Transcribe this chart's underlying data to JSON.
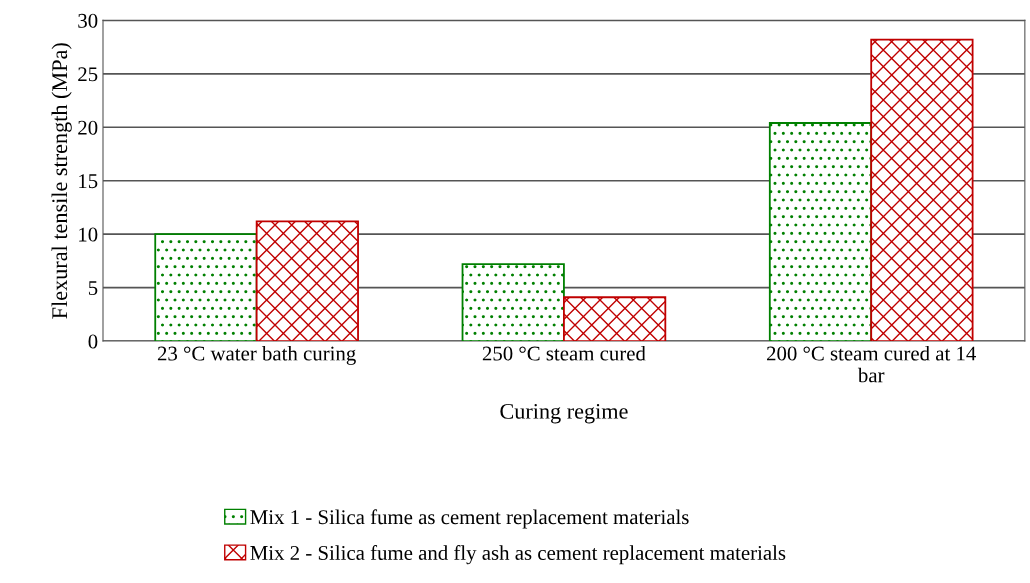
{
  "chart_data": {
    "type": "bar",
    "xlabel": "Curing regime",
    "ylabel": "Flexural tensile strength (MPa)",
    "categories": [
      "23 °C water bath curing",
      "250 °C steam cured",
      "200 °C steam cured at 14\nbar"
    ],
    "series": [
      {
        "name": "Mix 1 - Silica fume as cement replacement materials",
        "color": "#008000",
        "values": [
          10.0,
          7.2,
          20.4
        ]
      },
      {
        "name": "Mix 2 - Silica fume and fly ash as cement replacement materials",
        "color": "#c00000",
        "values": [
          11.2,
          4.1,
          28.2
        ]
      }
    ],
    "ylim": [
      0,
      30
    ],
    "yticks": [
      0,
      5,
      10,
      15,
      20,
      25,
      30
    ],
    "grid": "y",
    "legend": "bottom"
  }
}
